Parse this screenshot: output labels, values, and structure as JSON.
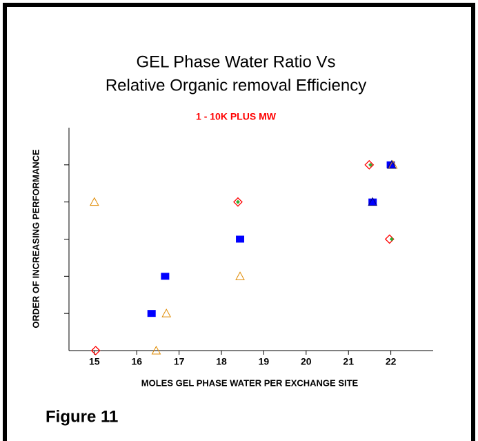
{
  "chart_data": {
    "type": "scatter",
    "title": [
      "GEL  Phase Water Ratio Vs",
      "Relative Organic removal Efficiency"
    ],
    "subtitle": "1 - 10K PLUS MW",
    "x_label": "MOLES GEL PHASE WATER PER EXCHANGE SITE",
    "y_label": "ORDER OF INCREASING PERFORMANCE",
    "figure_label": "Figure 11",
    "xlim": [
      14.4,
      23.0
    ],
    "xticks": [
      15,
      16,
      17,
      18,
      19,
      20,
      21,
      22
    ],
    "ylim": [
      0,
      6
    ],
    "yticks": [
      1,
      2,
      3,
      4,
      5
    ],
    "series": [
      {
        "marker": "square",
        "color": "#0000ff",
        "x": [
          16.35,
          16.67,
          18.44,
          21.57,
          22.0
        ],
        "values": [
          1,
          2,
          3,
          4,
          5
        ]
      },
      {
        "marker": "triangle-open",
        "color": "#e08a00",
        "x": [
          15.0,
          16.46,
          16.7,
          18.44,
          22.05
        ],
        "values": [
          4,
          0,
          1,
          2,
          5
        ]
      },
      {
        "marker": "diamond-open",
        "color": "#ff0000",
        "x": [
          15.03,
          18.39,
          21.49,
          21.97
        ],
        "values": [
          0,
          4,
          5,
          3
        ]
      },
      {
        "marker": "diamond-small",
        "color": "#33aa33",
        "x": [
          18.39,
          21.52,
          22.02
        ],
        "values": [
          4,
          5,
          3
        ]
      },
      {
        "marker": "triangle-open",
        "color": "#000080",
        "x": [
          21.57,
          22.02
        ],
        "values": [
          4,
          5
        ]
      }
    ]
  }
}
